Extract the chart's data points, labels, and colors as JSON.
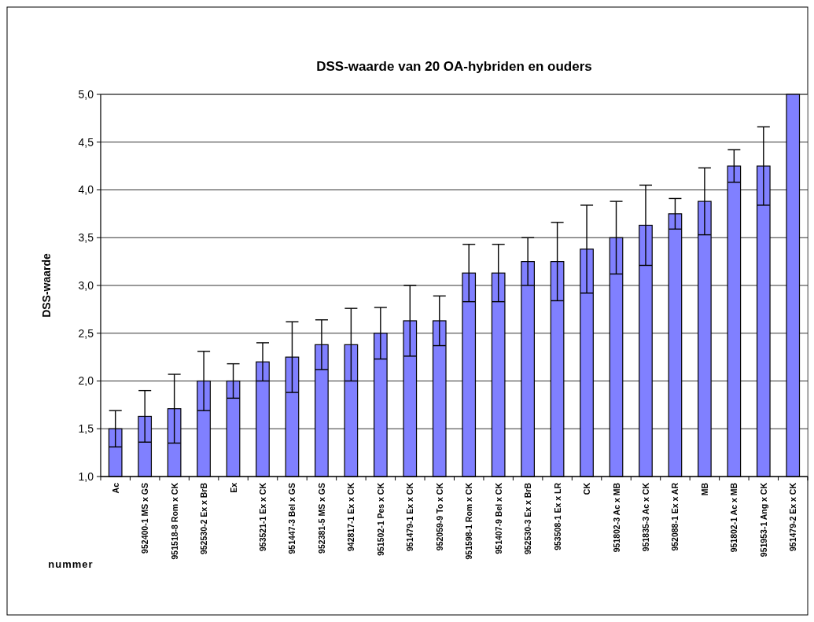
{
  "chart_data": {
    "type": "bar",
    "title": "DSS-waarde van 20 OA-hybriden en ouders",
    "xlabel": "nummer",
    "ylabel": "DSS-waarde",
    "categories": [
      "Ac",
      "952400-1 MS x GS",
      "951518-8 Rom x CK",
      "952530-2 Ex x BrB",
      "Ex",
      "953521-1 Ex x CK",
      "951447-3 Bel x GS",
      "952381-5 MS x GS",
      "942817-1 Ex x CK",
      "951502-1 Pes x CK",
      "951479-1 Ex x CK",
      "952059-9 To x CK",
      "951598-1 Rom x CK",
      "951407-9 Bel x CK",
      "952530-3 Ex x BrB",
      "953508-1 Ex x LR",
      "CK",
      "951802-3 Ac x MB",
      "951835-3 Ac x CK",
      "952088-1 Ex x AR",
      "MB",
      "951802-1 Ac x MB",
      "951953-1 Ang x CK",
      "951479-2 Ex x CK"
    ],
    "values": [
      1.5,
      1.63,
      1.71,
      2.0,
      2.0,
      2.2,
      2.25,
      2.38,
      2.38,
      2.5,
      2.63,
      2.63,
      3.13,
      3.13,
      3.25,
      3.25,
      3.38,
      3.5,
      3.63,
      3.75,
      3.88,
      4.25,
      4.25,
      5.0
    ],
    "errors": [
      0.19,
      0.27,
      0.36,
      0.31,
      0.18,
      0.2,
      0.37,
      0.26,
      0.38,
      0.27,
      0.37,
      0.26,
      0.3,
      0.3,
      0.25,
      0.41,
      0.46,
      0.38,
      0.42,
      0.16,
      0.35,
      0.17,
      0.41,
      null
    ],
    "color": "#8080ff",
    "ylim": [
      1.0,
      5.0
    ],
    "yticks": [
      {
        "value": 1.0,
        "label": "1,0"
      },
      {
        "value": 1.5,
        "label": "1,5"
      },
      {
        "value": 2.0,
        "label": "2,0"
      },
      {
        "value": 2.5,
        "label": "2,5"
      },
      {
        "value": 3.0,
        "label": "3,0"
      },
      {
        "value": 3.5,
        "label": "3,5"
      },
      {
        "value": 4.0,
        "label": "4,0"
      },
      {
        "value": 4.5,
        "label": "4,5"
      },
      {
        "value": 5.0,
        "label": "5,0"
      }
    ],
    "grid": "y"
  }
}
